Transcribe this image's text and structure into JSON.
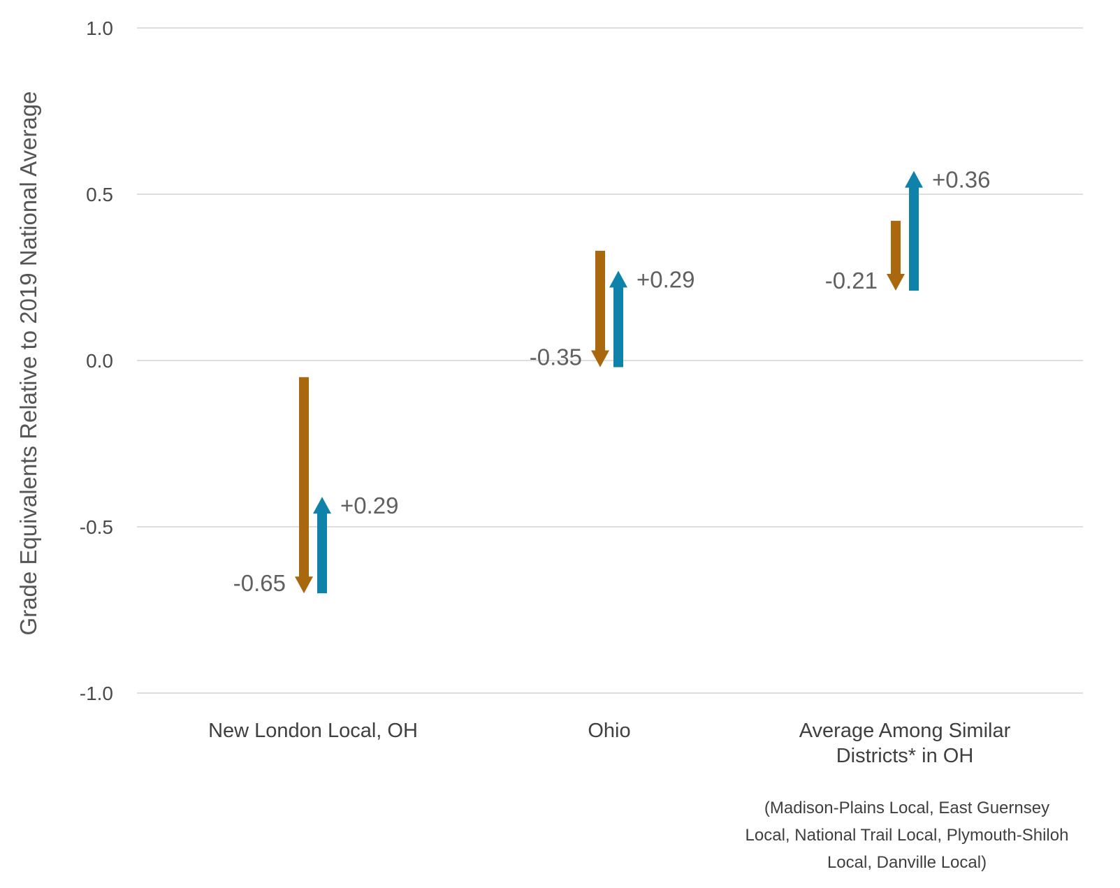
{
  "chart_data": {
    "type": "arrow",
    "ylabel": "Grade Equivalents Relative to 2019 National Average",
    "ylim": [
      -1.0,
      1.0
    ],
    "yticks": [
      1.0,
      0.5,
      0.0,
      -0.5,
      -1.0
    ],
    "ytick_labels": [
      "1.0",
      "0.5",
      "0.0",
      "-0.5",
      "-1.0"
    ],
    "grid": true,
    "colors": {
      "decline": "#A9680D",
      "recovery": "#0F82AA"
    },
    "categories": [
      {
        "label_lines": [
          "New London Local, OH"
        ],
        "decline": {
          "start": -0.05,
          "end": -0.7,
          "label": "-0.65"
        },
        "recovery": {
          "start": -0.7,
          "end": -0.41,
          "label": "+0.29"
        }
      },
      {
        "label_lines": [
          "Ohio"
        ],
        "decline": {
          "start": 0.33,
          "end": -0.02,
          "label": "-0.35"
        },
        "recovery": {
          "start": -0.02,
          "end": 0.27,
          "label": "+0.29"
        }
      },
      {
        "label_lines": [
          "Average Among Similar",
          "Districts* in OH"
        ],
        "decline": {
          "start": 0.42,
          "end": 0.21,
          "label": "-0.21"
        },
        "recovery": {
          "start": 0.21,
          "end": 0.57,
          "label": "+0.36"
        }
      }
    ],
    "footnote_lines": [
      "(Madison-Plains Local, East Guernsey",
      "Local, National Trail Local, Plymouth-Shiloh",
      "Local, Danville Local)"
    ]
  }
}
